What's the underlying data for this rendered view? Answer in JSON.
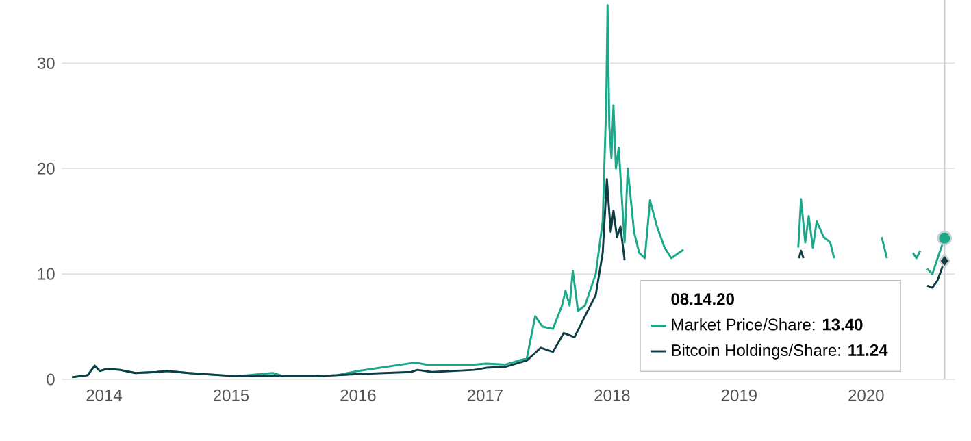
{
  "chart_data": {
    "type": "line",
    "legend_title": "08.14.20",
    "legend": "bottom right",
    "grid": "y",
    "xlim": [
      "2013-09-01",
      "2020-09-12"
    ],
    "xticks": [
      "2014",
      "2015",
      "2016",
      "2017",
      "2018",
      "2019",
      "2020"
    ],
    "ylim": [
      0,
      36
    ],
    "yticks": [
      0,
      10,
      20,
      30
    ],
    "ref_lines": [
      {
        "axis": "x",
        "value": "2020-08-14",
        "color": "#cccccc"
      }
    ],
    "series": [
      {
        "type": "scatter",
        "marker": "circle",
        "color": "#1aa889",
        "x": [
          "2020-08-14"
        ],
        "values": [
          13.4
        ]
      },
      {
        "type": "scatter",
        "marker": "diamond",
        "color": "#0f3d45",
        "x": [
          "2020-08-14"
        ],
        "values": [
          11.24
        ]
      },
      {
        "name": "Market Price/Share: **13.40**",
        "color": "#1aa889",
        "x": [
          "2013-10-01",
          "2013-11-15",
          "2013-12-05",
          "2013-12-20",
          "2014-01-10",
          "2014-02-15",
          "2014-04-01",
          "2014-06-01",
          "2014-07-01",
          "2014-09-01",
          "2014-12-01",
          "2015-01-15",
          "2015-05-01",
          "2015-06-01",
          "2015-09-01",
          "2015-11-01",
          "2016-01-01",
          "2016-06-15",
          "2016-07-15",
          "2016-12-01",
          "2017-01-05",
          "2017-03-01",
          "2017-05-01",
          "2017-05-25",
          "2017-06-15",
          "2017-07-15",
          "2017-08-10",
          "2017-08-20",
          "2017-09-01",
          "2017-09-10",
          "2017-09-25",
          "2017-10-15",
          "2017-11-15",
          "2017-12-05",
          "2017-12-15",
          "2017-12-19",
          "2017-12-24",
          "2017-12-30",
          "2018-01-05",
          "2018-01-12",
          "2018-01-20",
          "2018-02-06",
          "2018-02-15",
          "2018-03-05",
          "2018-03-20",
          "2018-04-05",
          "2018-04-20",
          "2018-05-10",
          "2018-06-01",
          "2018-06-20",
          "2018-07-25",
          "2018-10-01",
          "2019-06-20",
          "2019-06-28",
          "2019-07-10",
          "2019-07-20",
          "2019-08-01",
          "2019-08-12",
          "2019-09-01",
          "2019-09-20",
          "2019-10-01",
          "2020-01-20",
          "2020-02-15",
          "2020-03-01",
          "2020-04-10",
          "2020-05-15",
          "2020-05-25",
          "2020-06-05",
          "2020-06-15",
          "2020-06-25",
          "2020-07-10",
          "2020-07-25",
          "2020-08-14"
        ],
        "values": [
          0.2,
          0.4,
          1.3,
          0.8,
          1.0,
          0.9,
          0.6,
          0.7,
          0.8,
          0.6,
          0.4,
          0.3,
          0.6,
          0.3,
          0.3,
          0.4,
          0.8,
          1.6,
          1.4,
          1.4,
          1.5,
          1.4,
          2.0,
          6.0,
          5.0,
          4.8,
          7.0,
          8.4,
          7.0,
          10.3,
          6.5,
          7.0,
          10.0,
          15,
          26,
          35.5,
          24,
          21,
          26,
          20,
          22,
          13,
          20,
          14,
          12,
          11.5,
          17,
          14.5,
          12.5,
          11.5,
          12.3,
          null,
          12.5,
          17.1,
          13,
          15.5,
          12.5,
          15,
          13.5,
          13,
          11.5,
          null,
          13.5,
          11.5,
          null,
          12,
          11.5,
          12.2,
          null,
          10.5,
          10.0,
          11.5,
          13.4
        ]
      },
      {
        "name": "Bitcoin Holdings/Share: **11.24**",
        "color": "#0f3d45",
        "x": [
          "2013-10-01",
          "2013-11-15",
          "2013-12-05",
          "2013-12-20",
          "2014-01-10",
          "2014-02-15",
          "2014-04-01",
          "2014-06-01",
          "2014-07-01",
          "2014-09-01",
          "2014-12-01",
          "2015-01-15",
          "2015-06-01",
          "2015-09-01",
          "2015-11-01",
          "2016-01-01",
          "2016-06-01",
          "2016-06-20",
          "2016-08-01",
          "2016-12-01",
          "2017-01-05",
          "2017-03-01",
          "2017-05-01",
          "2017-06-10",
          "2017-07-15",
          "2017-08-15",
          "2017-09-15",
          "2017-10-15",
          "2017-11-15",
          "2017-12-05",
          "2017-12-17",
          "2017-12-28",
          "2018-01-05",
          "2018-01-15",
          "2018-01-25",
          "2018-02-06",
          "2018-04-01",
          "2019-06-22",
          "2019-06-28",
          "2019-07-05",
          "2020-06-20",
          "2020-06-25",
          "2020-07-10",
          "2020-07-25",
          "2020-08-14"
        ],
        "values": [
          0.2,
          0.4,
          1.3,
          0.8,
          1.0,
          0.9,
          0.6,
          0.7,
          0.8,
          0.6,
          0.4,
          0.3,
          0.3,
          0.3,
          0.4,
          0.5,
          0.7,
          0.9,
          0.7,
          0.9,
          1.1,
          1.2,
          1.8,
          3.0,
          2.6,
          4.4,
          4.0,
          6.0,
          8.0,
          12.0,
          19.0,
          14.0,
          16.0,
          13.5,
          14.5,
          11.3,
          null,
          11.5,
          12.2,
          11.5,
          null,
          8.9,
          8.7,
          9.4,
          11.24
        ]
      }
    ]
  }
}
